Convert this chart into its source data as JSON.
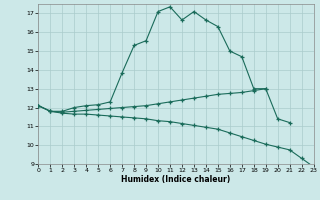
{
  "xlabel": "Humidex (Indice chaleur)",
  "bg_color": "#cce8e8",
  "grid_color": "#aacccc",
  "line_color": "#1a6b5a",
  "xlim": [
    0,
    23
  ],
  "ylim": [
    9,
    17.5
  ],
  "yticks": [
    9,
    10,
    11,
    12,
    13,
    14,
    15,
    16,
    17
  ],
  "xticks": [
    0,
    1,
    2,
    3,
    4,
    5,
    6,
    7,
    8,
    9,
    10,
    11,
    12,
    13,
    14,
    15,
    16,
    17,
    18,
    19,
    20,
    21,
    22,
    23
  ],
  "line1_x": [
    0,
    1,
    2,
    3,
    4,
    5,
    6,
    7,
    8,
    9,
    10,
    11,
    12,
    13,
    14,
    15,
    16,
    17,
    18,
    19
  ],
  "line1_y": [
    12.1,
    11.8,
    11.8,
    12.0,
    12.1,
    12.15,
    12.3,
    13.85,
    15.3,
    15.55,
    17.1,
    17.35,
    16.65,
    17.1,
    16.65,
    16.3,
    15.0,
    14.7,
    13.0,
    13.0
  ],
  "line2_x": [
    0,
    1,
    2,
    3,
    4,
    5,
    6,
    7,
    8,
    9,
    10,
    11,
    12,
    13,
    14,
    15,
    16,
    17,
    18,
    19,
    20,
    21
  ],
  "line2_y": [
    12.1,
    11.8,
    11.75,
    11.8,
    11.85,
    11.9,
    11.95,
    12.0,
    12.05,
    12.1,
    12.2,
    12.3,
    12.4,
    12.5,
    12.6,
    12.7,
    12.75,
    12.8,
    12.9,
    13.0,
    11.4,
    11.2
  ],
  "line3_x": [
    0,
    1,
    2,
    3,
    4,
    5,
    6,
    7,
    8,
    9,
    10,
    11,
    12,
    13,
    14,
    15,
    16,
    17,
    18,
    19,
    20,
    21,
    22,
    23
  ],
  "line3_y": [
    12.1,
    11.8,
    11.7,
    11.65,
    11.65,
    11.6,
    11.55,
    11.5,
    11.45,
    11.4,
    11.3,
    11.25,
    11.15,
    11.05,
    10.95,
    10.85,
    10.65,
    10.45,
    10.25,
    10.05,
    9.9,
    9.75,
    9.3,
    8.85
  ]
}
